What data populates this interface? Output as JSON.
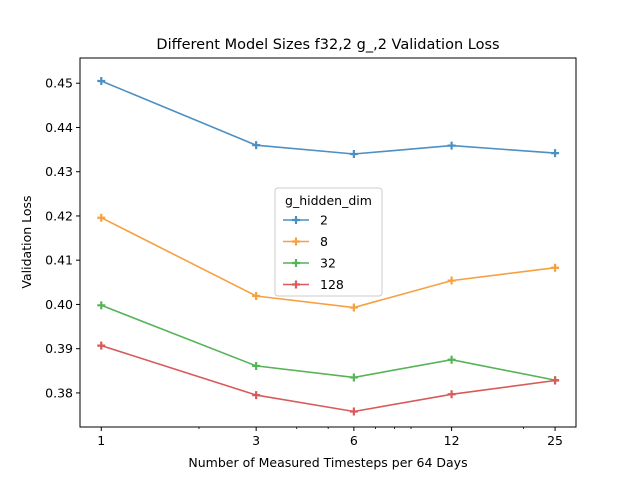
{
  "chart_data": {
    "type": "line",
    "title": "Different Model Sizes f32,2 g_,2 Validation Loss",
    "xlabel": "Number of Measured Timesteps per 64 Days",
    "ylabel": "Validation Loss",
    "x_scale": "log",
    "x": [
      1,
      3,
      6,
      12,
      25
    ],
    "x_tick_labels": [
      "1",
      "3",
      "6",
      "12",
      "25"
    ],
    "xlim": [
      0.86,
      29.0
    ],
    "ylim": [
      0.3723,
      0.4557
    ],
    "y_ticks": [
      0.38,
      0.39,
      0.4,
      0.41,
      0.42,
      0.43,
      0.44,
      0.45
    ],
    "y_tick_labels": [
      "0.38",
      "0.39",
      "0.40",
      "0.41",
      "0.42",
      "0.43",
      "0.44",
      "0.45"
    ],
    "grid": false,
    "legend": {
      "title": "g_hidden_dim",
      "placement": "center"
    },
    "series": [
      {
        "name": "2",
        "color": "#4c8fc3",
        "marker": "plus",
        "values": [
          0.4505,
          0.436,
          0.434,
          0.4359,
          0.4342
        ]
      },
      {
        "name": "8",
        "color": "#f7a040",
        "marker": "plus",
        "values": [
          0.4196,
          0.4019,
          0.3993,
          0.4054,
          0.4083
        ]
      },
      {
        "name": "32",
        "color": "#56b356",
        "marker": "plus",
        "values": [
          0.3998,
          0.3861,
          0.3835,
          0.3875,
          0.3829
        ]
      },
      {
        "name": "128",
        "color": "#d95a5a",
        "marker": "plus",
        "values": [
          0.3907,
          0.3795,
          0.3758,
          0.3797,
          0.3828
        ]
      }
    ]
  }
}
